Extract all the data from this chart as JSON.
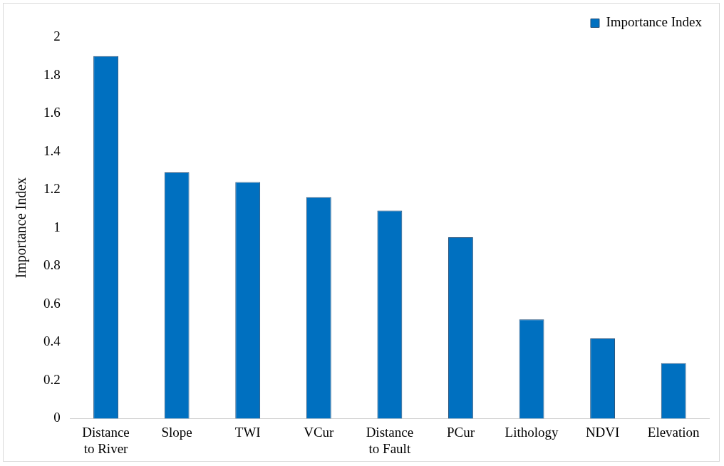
{
  "chart_data": {
    "type": "bar",
    "ylabel": "Importance Index",
    "categories": [
      "Distance to River",
      "Slope",
      "TWI",
      "VCur",
      "Distance to Fault",
      "PCur",
      "Lithology",
      "NDVI",
      "Elevation"
    ],
    "series": [
      {
        "name": "Importance Index",
        "color": "#0070c0",
        "values": [
          1.9,
          1.29,
          1.24,
          1.16,
          1.09,
          0.95,
          0.52,
          0.42,
          0.29
        ]
      }
    ],
    "ylim": [
      0,
      2
    ],
    "yticks": [
      0,
      0.2,
      0.4,
      0.6,
      0.8,
      1,
      1.2,
      1.4,
      1.6,
      1.8,
      2
    ],
    "grid": false,
    "legend": "top right"
  }
}
